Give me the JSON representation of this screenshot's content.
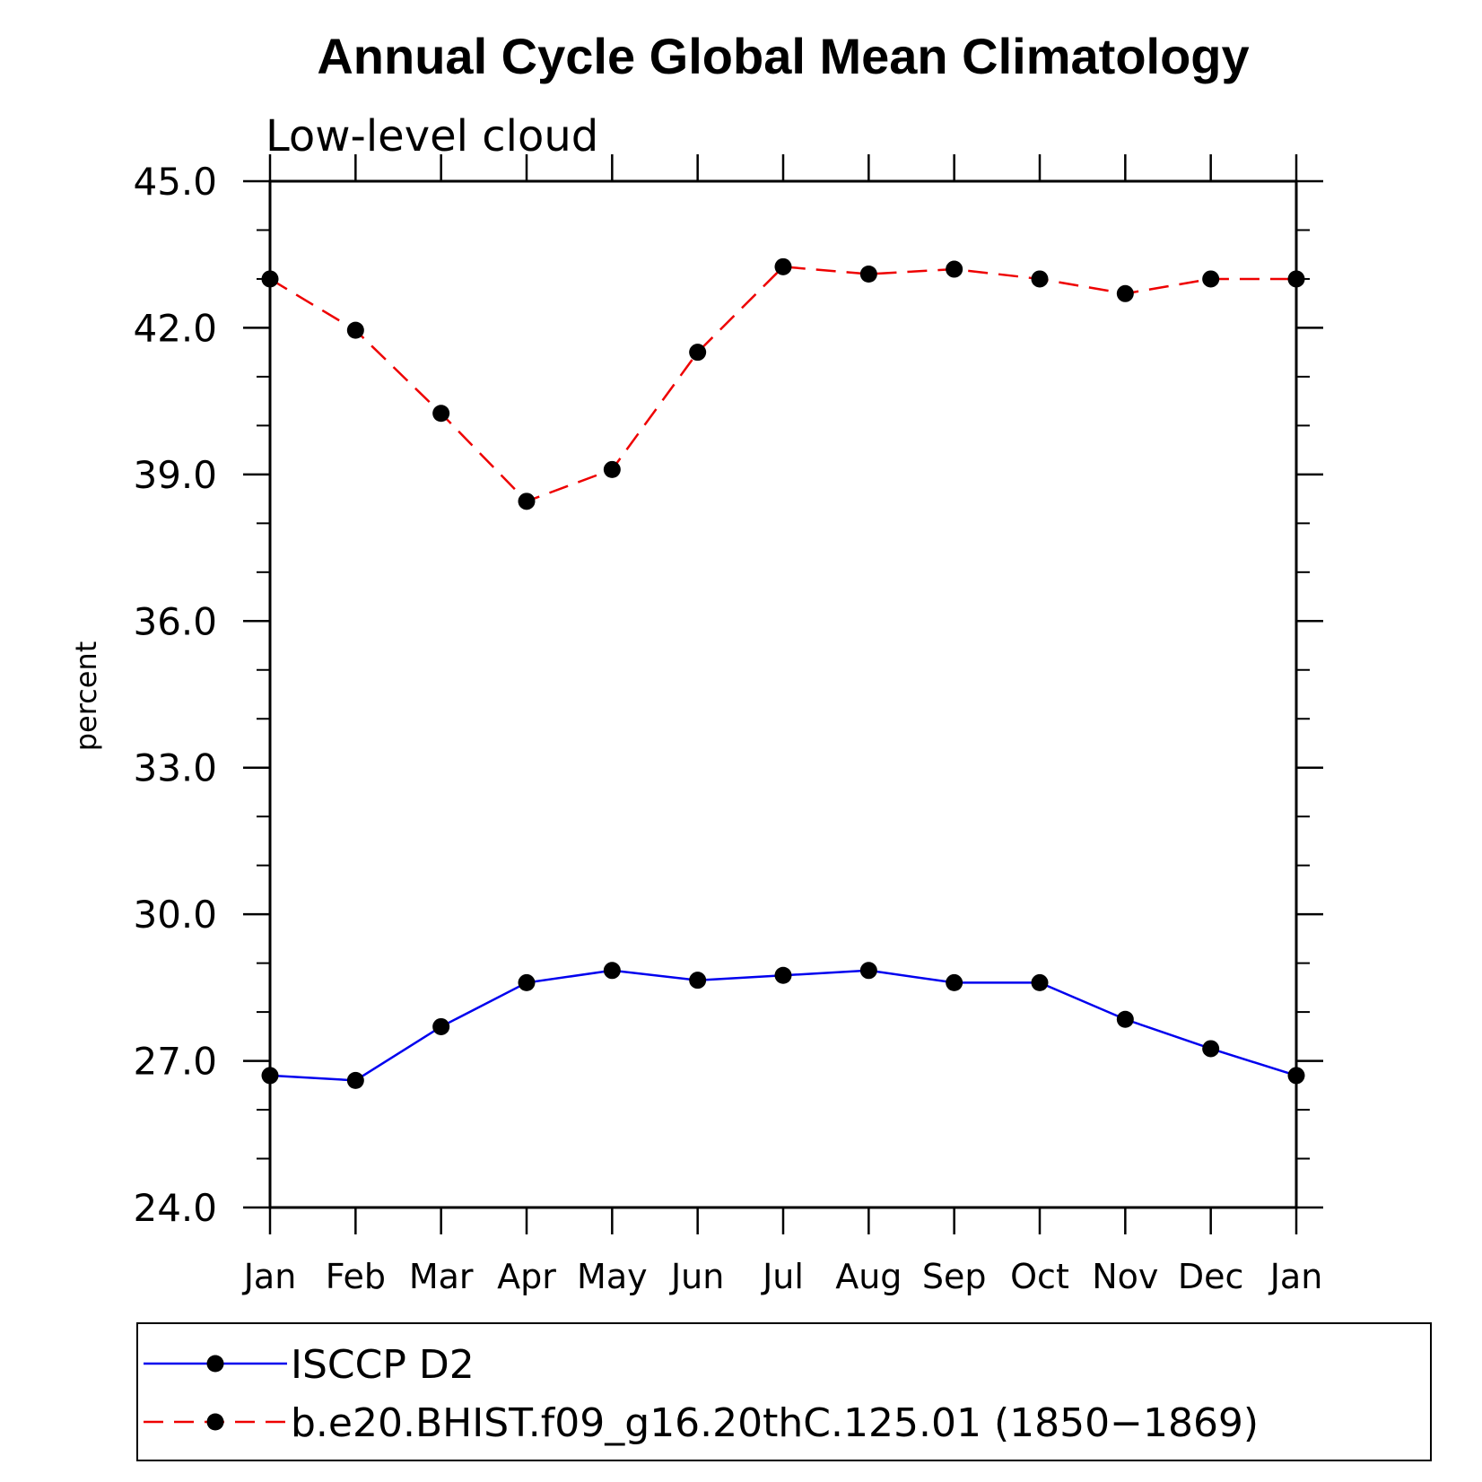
{
  "chart_data": {
    "type": "line",
    "title": "Annual Cycle Global Mean Climatology",
    "subtitle": "Low-level cloud",
    "ylabel": "percent",
    "xlabel": "",
    "ylim": [
      24.0,
      45.0
    ],
    "yticks": [
      24.0,
      27.0,
      30.0,
      33.0,
      36.0,
      39.0,
      42.0,
      45.0
    ],
    "ytick_labels": [
      "24.0",
      "27.0",
      "30.0",
      "33.0",
      "36.0",
      "39.0",
      "42.0",
      "45.0"
    ],
    "categories": [
      "Jan",
      "Feb",
      "Mar",
      "Apr",
      "May",
      "Jun",
      "Jul",
      "Aug",
      "Sep",
      "Oct",
      "Nov",
      "Dec",
      "Jan"
    ],
    "series": [
      {
        "name": "ISCCP D2",
        "color": "#0000ee",
        "dash": "solid",
        "marker": "dot",
        "values": [
          26.7,
          26.6,
          27.7,
          28.6,
          28.85,
          28.65,
          28.75,
          28.85,
          28.6,
          28.6,
          27.85,
          27.25,
          26.7
        ]
      },
      {
        "name": "b.e20.BHIST.f09_g16.20thC.125.01 (1850−1869)",
        "color": "#ee0000",
        "dash": "dashed",
        "marker": "dot",
        "values": [
          43.0,
          41.95,
          40.25,
          38.45,
          39.1,
          41.5,
          43.25,
          43.1,
          43.2,
          43.0,
          42.7,
          43.0,
          43.0
        ]
      }
    ],
    "legend_position": "bottom"
  }
}
